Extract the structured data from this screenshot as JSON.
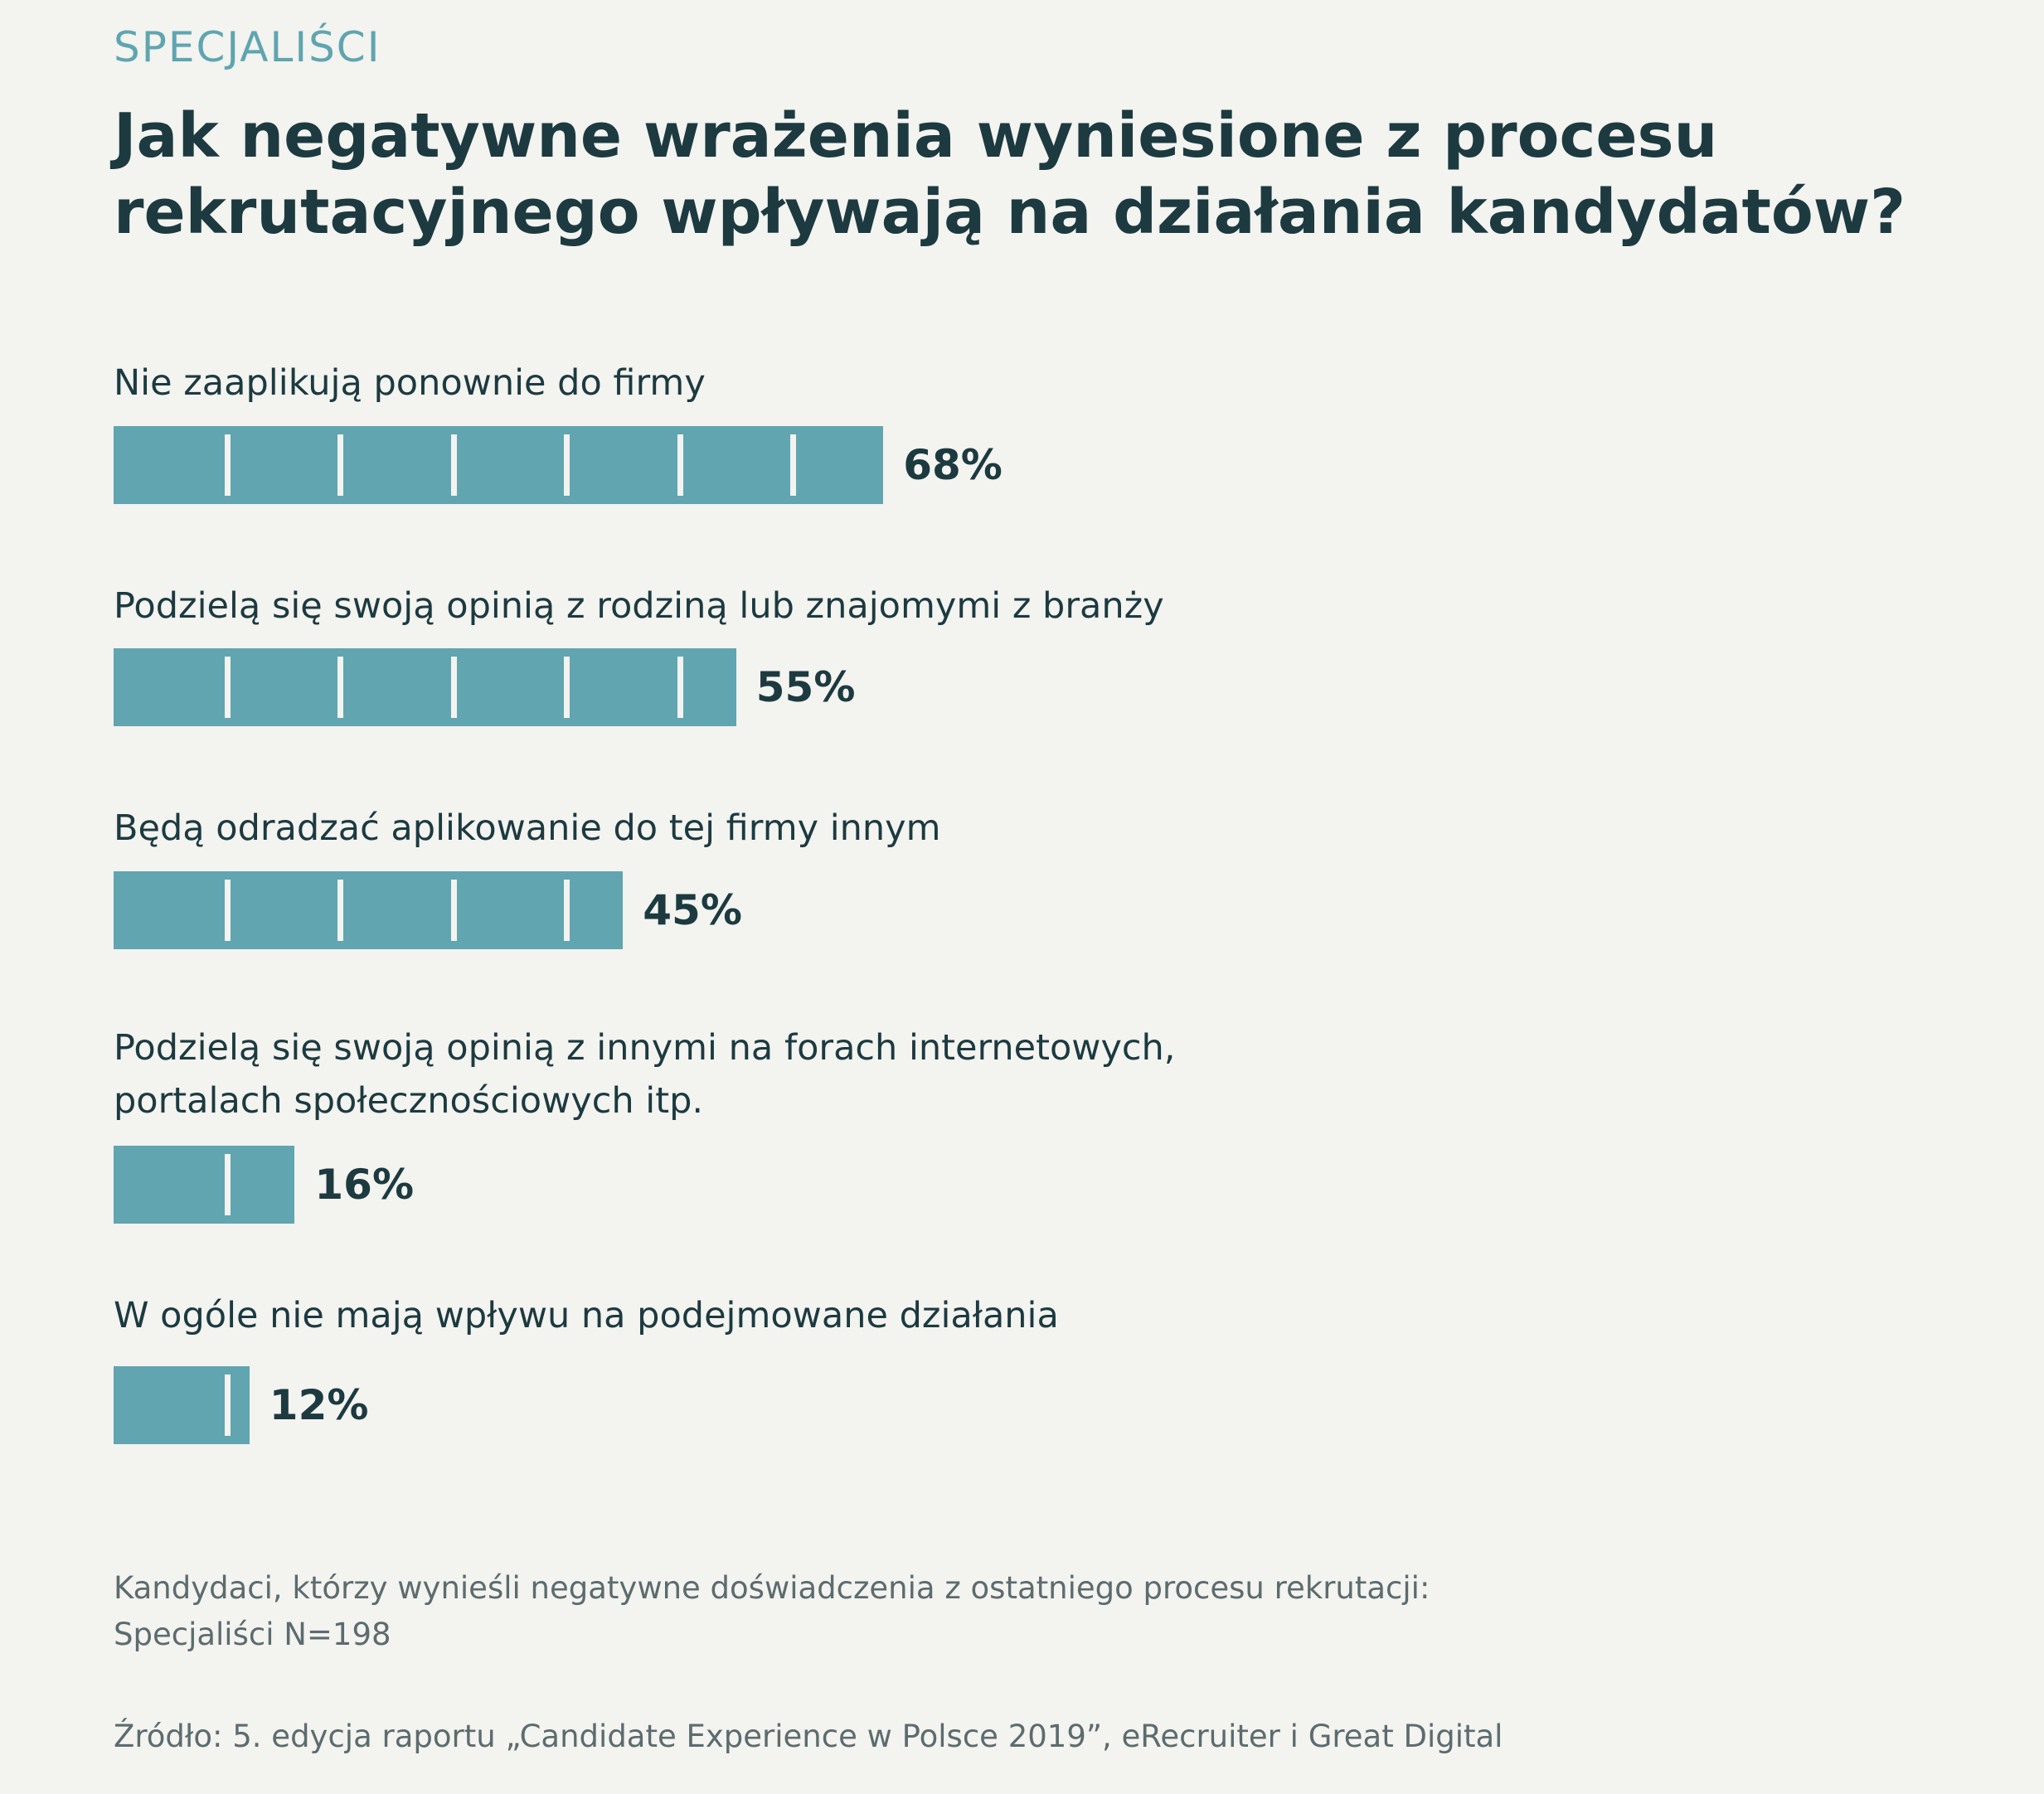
{
  "header": {
    "eyebrow": "SPECJALIŚCI",
    "title_lines": [
      "Jak negatywne wrażenia wyniesione z procesu",
      "rekrutacyjnego wpływają na działania kandydatów?"
    ]
  },
  "chart_data": {
    "type": "bar",
    "orientation": "horizontal",
    "title": "Jak negatywne wrażenia wyniesione z procesu rekrutacyjnego wpływają na działania kandydatów?",
    "categories": [
      [
        "Nie zaaplikują ponownie do firmy"
      ],
      [
        "Podzielą się swoją opinią z rodziną lub znajomymi z branży"
      ],
      [
        "Będą odradzać aplikowanie do tej firmy innym"
      ],
      [
        "Podzielą się swoją opinią z innymi na forach internetowych,",
        "portalach społecznościowych itp."
      ],
      [
        "W ogóle nie mają wpływu na podejmowane działania"
      ]
    ],
    "values": [
      68,
      55,
      45,
      16,
      12
    ],
    "value_labels": [
      "68%",
      "55%",
      "45%",
      "16%",
      "12%"
    ],
    "unit": "%",
    "xlim": [
      0,
      100
    ],
    "tick_step": 10,
    "bar_color": "#61a5b0",
    "legend": "none",
    "grid": false
  },
  "footer": {
    "note_lines": [
      "Kandydaci, którzy wynieśli negatywne doświadczenia z ostatniego procesu rekrutacji:",
      "Specjaliści N=198"
    ],
    "source": "Źródło: 5. edycja raportu „Candidate Experience w Polsce 2019”, eRecruiter i Great Digital"
  }
}
